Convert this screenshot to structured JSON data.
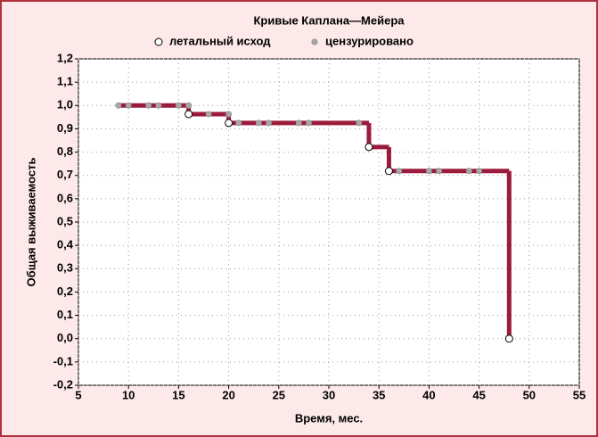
{
  "chart_data": {
    "type": "step",
    "title": "Кривые Каплана—Мейера",
    "xlabel": "Время, мес.",
    "ylabel": "Общая выживаемость",
    "xlim": [
      5,
      55
    ],
    "xticks": [
      5,
      10,
      15,
      20,
      25,
      30,
      35,
      40,
      45,
      50,
      55
    ],
    "ylim": [
      -0.2,
      1.2
    ],
    "yticks": [
      {
        "value": -0.2,
        "label": "-0,2"
      },
      {
        "value": -0.1,
        "label": "-0,1"
      },
      {
        "value": 0,
        "label": "0,0"
      },
      {
        "value": 0.1,
        "label": "0,1"
      },
      {
        "value": 0.2,
        "label": "0,2"
      },
      {
        "value": 0.3,
        "label": "0,3"
      },
      {
        "value": 0.4,
        "label": "0,4"
      },
      {
        "value": 0.5,
        "label": "0,5"
      },
      {
        "value": 0.6,
        "label": "0,6"
      },
      {
        "value": 0.7,
        "label": "0,7"
      },
      {
        "value": 0.8,
        "label": "0,8"
      },
      {
        "value": 0.9,
        "label": "0,9"
      },
      {
        "value": 1.0,
        "label": "1,0"
      },
      {
        "value": 1.1,
        "label": "1,1"
      },
      {
        "value": 1.2,
        "label": "1,2"
      }
    ],
    "grid": true,
    "line_color": "#9c1a3c",
    "series": [
      {
        "name": "летальный исход",
        "color": "#ffffff",
        "x": [
          16,
          20,
          34,
          36,
          48
        ],
        "values": [
          0.963,
          0.925,
          0.822,
          0.719,
          0
        ]
      },
      {
        "name": "цензурировано",
        "color": "#a6a6a6",
        "x": [
          9,
          10,
          12,
          13,
          15,
          16,
          18,
          20,
          21,
          23,
          24,
          27,
          28,
          33,
          37,
          40,
          41,
          44,
          45
        ],
        "values": [
          1,
          1,
          1,
          1,
          1,
          1,
          0.963,
          0.963,
          0.925,
          0.925,
          0.925,
          0.925,
          0.925,
          0.925,
          0.719,
          0.719,
          0.719,
          0.719,
          0.719
        ]
      }
    ],
    "steps": {
      "x": [
        9,
        16,
        20,
        34,
        36,
        48
      ],
      "values": [
        1,
        0.963,
        0.925,
        0.822,
        0.719,
        0
      ]
    }
  }
}
